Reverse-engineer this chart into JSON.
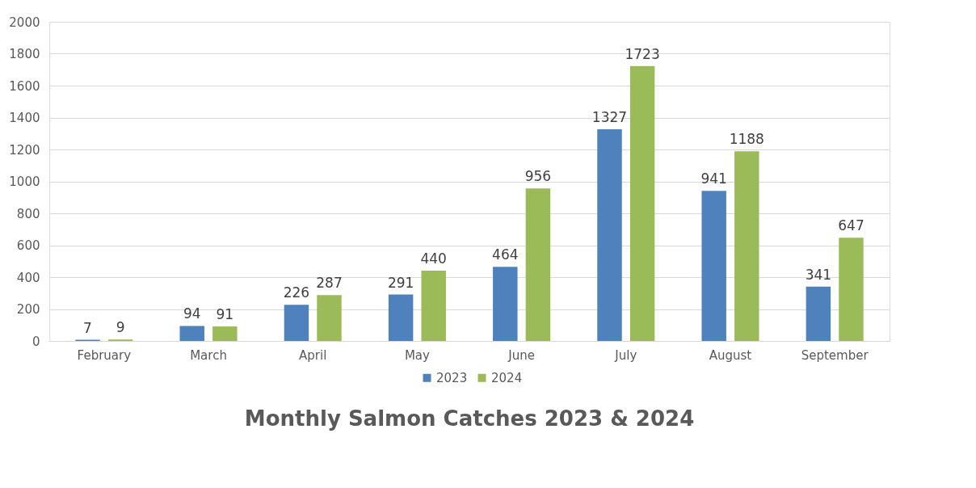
{
  "chart_data": {
    "type": "bar",
    "title": "Monthly Salmon Catches 2023 & 2024",
    "categories": [
      "February",
      "March",
      "April",
      "May",
      "June",
      "July",
      "August",
      "September"
    ],
    "series": [
      {
        "name": "2023",
        "color": "#4f81bd",
        "values": [
          7,
          94,
          226,
          291,
          464,
          1327,
          941,
          341
        ]
      },
      {
        "name": "2024",
        "color": "#9bbb59",
        "values": [
          9,
          91,
          287,
          440,
          956,
          1723,
          1188,
          647
        ]
      }
    ],
    "ylim": [
      0,
      2000
    ],
    "yticks": [
      0,
      200,
      400,
      600,
      800,
      1000,
      1200,
      1400,
      1600,
      1800,
      2000
    ],
    "grid": "y",
    "legend": "bottom",
    "data_labels": true
  }
}
